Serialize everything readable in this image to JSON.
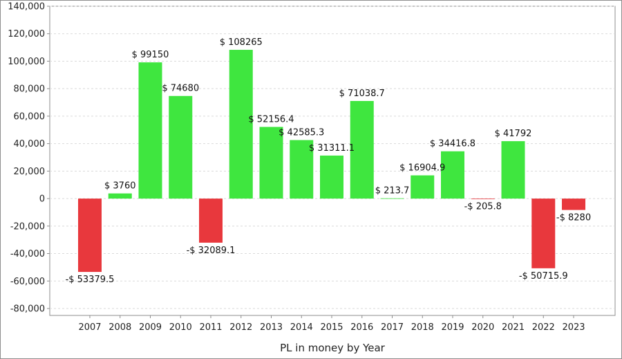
{
  "chart_data": {
    "type": "bar",
    "title": "",
    "xlabel": "PL in money by Year",
    "ylabel": "",
    "categories": [
      "2007",
      "2008",
      "2009",
      "2010",
      "2011",
      "2012",
      "2013",
      "2014",
      "2015",
      "2016",
      "2017",
      "2018",
      "2019",
      "2020",
      "2021",
      "2022",
      "2023"
    ],
    "values": [
      -53379.5,
      3760,
      99150,
      74680,
      -32089.1,
      108265,
      52156.4,
      42585.3,
      31311.1,
      71038.7,
      213.7,
      16904.9,
      34416.8,
      -205.8,
      41792,
      -50715.9,
      -8280
    ],
    "data_labels": [
      "-$ 53379.5",
      "$ 3760",
      "$ 99150",
      "$ 74680",
      "-$ 32089.1",
      "$ 108265",
      "$ 52156.4",
      "$ 42585.3",
      "$ 31311.1",
      "$ 71038.7",
      "$ 213.7",
      "$ 16904.9",
      "$ 34416.8",
      "-$ 205.8",
      "$ 41792",
      "-$ 50715.9",
      "-$ 8280"
    ],
    "ylim": [
      -85000,
      140000
    ],
    "y_ticks": [
      140000,
      120000,
      100000,
      80000,
      60000,
      40000,
      20000,
      0,
      -20000,
      -40000,
      -60000,
      -80000
    ],
    "y_tick_labels": [
      "140,000",
      "120,000",
      "100,000",
      "80,000",
      "60,000",
      "40,000",
      "20,000",
      "0",
      "-20,000",
      "-40,000",
      "-60,000",
      "-80,000"
    ],
    "grid": true,
    "colors": {
      "positive": "#3fe63f",
      "negative": "#e8383d",
      "grid": "#d9d9d9",
      "axis": "#8c8c8c"
    }
  }
}
